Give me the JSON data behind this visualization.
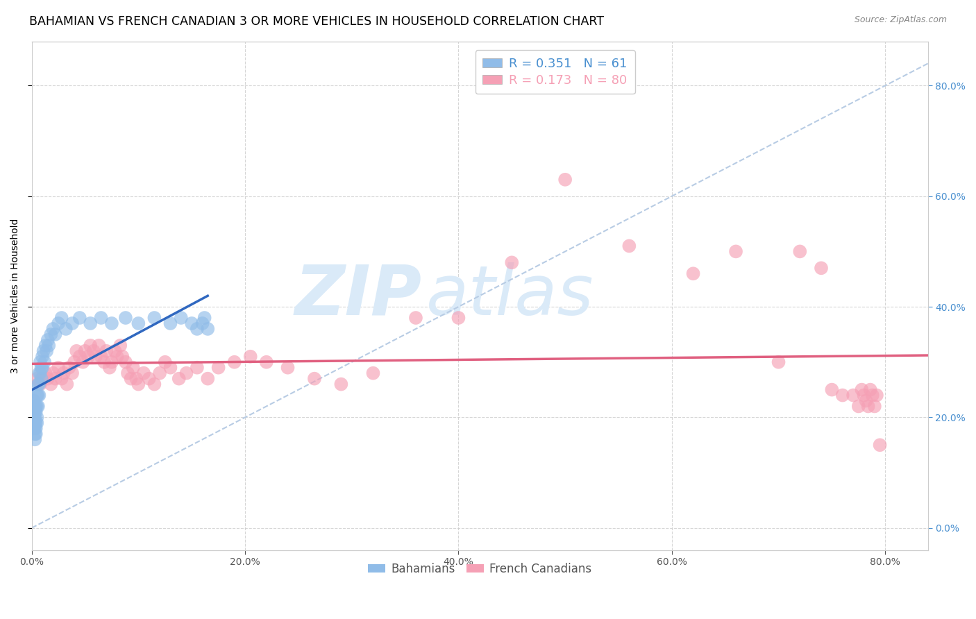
{
  "title": "BAHAMIAN VS FRENCH CANADIAN 3 OR MORE VEHICLES IN HOUSEHOLD CORRELATION CHART",
  "source": "Source: ZipAtlas.com",
  "ylabel_label": "3 or more Vehicles in Household",
  "xlim": [
    0.0,
    0.84
  ],
  "ylim": [
    -0.04,
    0.88
  ],
  "xticks": [
    0.0,
    0.2,
    0.4,
    0.6,
    0.8
  ],
  "yticks": [
    0.0,
    0.2,
    0.4,
    0.6,
    0.8
  ],
  "bahamian_color": "#90bce8",
  "french_canadian_color": "#f5a0b5",
  "trend_bahamian_color": "#3068c0",
  "trend_french_canadian_color": "#e06080",
  "diagonal_color": "#b8cce4",
  "watermark_zip": "ZIP",
  "watermark_atlas": "atlas",
  "watermark_color": "#daeaf8",
  "background_color": "#ffffff",
  "grid_color": "#cccccc",
  "right_tick_color": "#4a90d0",
  "title_fontsize": 12.5,
  "axis_label_fontsize": 10,
  "tick_fontsize": 10,
  "bahamian_R": 0.351,
  "bahamian_N": 61,
  "french_R": 0.173,
  "french_N": 80,
  "bah_x": [
    0.001,
    0.001,
    0.002,
    0.002,
    0.002,
    0.002,
    0.003,
    0.003,
    0.003,
    0.003,
    0.003,
    0.003,
    0.003,
    0.004,
    0.004,
    0.004,
    0.004,
    0.004,
    0.005,
    0.005,
    0.005,
    0.005,
    0.006,
    0.006,
    0.006,
    0.007,
    0.007,
    0.007,
    0.008,
    0.008,
    0.009,
    0.009,
    0.01,
    0.01,
    0.011,
    0.012,
    0.013,
    0.014,
    0.015,
    0.016,
    0.018,
    0.02,
    0.022,
    0.025,
    0.028,
    0.032,
    0.038,
    0.045,
    0.055,
    0.065,
    0.075,
    0.088,
    0.1,
    0.115,
    0.13,
    0.14,
    0.15,
    0.155,
    0.16,
    0.162,
    0.165
  ],
  "bah_y": [
    0.21,
    0.19,
    0.22,
    0.2,
    0.18,
    0.23,
    0.21,
    0.19,
    0.22,
    0.2,
    0.18,
    0.17,
    0.16,
    0.22,
    0.21,
    0.19,
    0.18,
    0.17,
    0.24,
    0.22,
    0.2,
    0.19,
    0.26,
    0.24,
    0.22,
    0.28,
    0.26,
    0.24,
    0.3,
    0.28,
    0.29,
    0.27,
    0.31,
    0.29,
    0.32,
    0.3,
    0.33,
    0.32,
    0.34,
    0.33,
    0.35,
    0.36,
    0.35,
    0.37,
    0.38,
    0.36,
    0.37,
    0.38,
    0.37,
    0.38,
    0.37,
    0.38,
    0.37,
    0.38,
    0.37,
    0.38,
    0.37,
    0.36,
    0.37,
    0.38,
    0.36
  ],
  "frc_x": [
    0.005,
    0.008,
    0.01,
    0.013,
    0.015,
    0.018,
    0.02,
    0.022,
    0.025,
    0.028,
    0.03,
    0.033,
    0.035,
    0.038,
    0.04,
    0.042,
    0.045,
    0.048,
    0.05,
    0.053,
    0.055,
    0.058,
    0.06,
    0.063,
    0.065,
    0.068,
    0.07,
    0.073,
    0.075,
    0.078,
    0.08,
    0.083,
    0.085,
    0.088,
    0.09,
    0.093,
    0.095,
    0.098,
    0.1,
    0.105,
    0.11,
    0.115,
    0.12,
    0.125,
    0.13,
    0.138,
    0.145,
    0.155,
    0.165,
    0.175,
    0.19,
    0.205,
    0.22,
    0.24,
    0.265,
    0.29,
    0.32,
    0.36,
    0.4,
    0.45,
    0.5,
    0.56,
    0.62,
    0.66,
    0.7,
    0.72,
    0.74,
    0.75,
    0.76,
    0.77,
    0.775,
    0.778,
    0.78,
    0.782,
    0.784,
    0.786,
    0.788,
    0.79,
    0.792,
    0.795
  ],
  "frc_y": [
    0.27,
    0.26,
    0.27,
    0.28,
    0.27,
    0.26,
    0.28,
    0.27,
    0.29,
    0.27,
    0.28,
    0.26,
    0.29,
    0.28,
    0.3,
    0.32,
    0.31,
    0.3,
    0.32,
    0.31,
    0.33,
    0.32,
    0.31,
    0.33,
    0.31,
    0.3,
    0.32,
    0.29,
    0.3,
    0.32,
    0.31,
    0.33,
    0.31,
    0.3,
    0.28,
    0.27,
    0.29,
    0.27,
    0.26,
    0.28,
    0.27,
    0.26,
    0.28,
    0.3,
    0.29,
    0.27,
    0.28,
    0.29,
    0.27,
    0.29,
    0.3,
    0.31,
    0.3,
    0.29,
    0.27,
    0.26,
    0.28,
    0.38,
    0.38,
    0.48,
    0.63,
    0.51,
    0.46,
    0.5,
    0.3,
    0.5,
    0.47,
    0.25,
    0.24,
    0.24,
    0.22,
    0.25,
    0.24,
    0.23,
    0.22,
    0.25,
    0.24,
    0.22,
    0.24,
    0.15
  ]
}
